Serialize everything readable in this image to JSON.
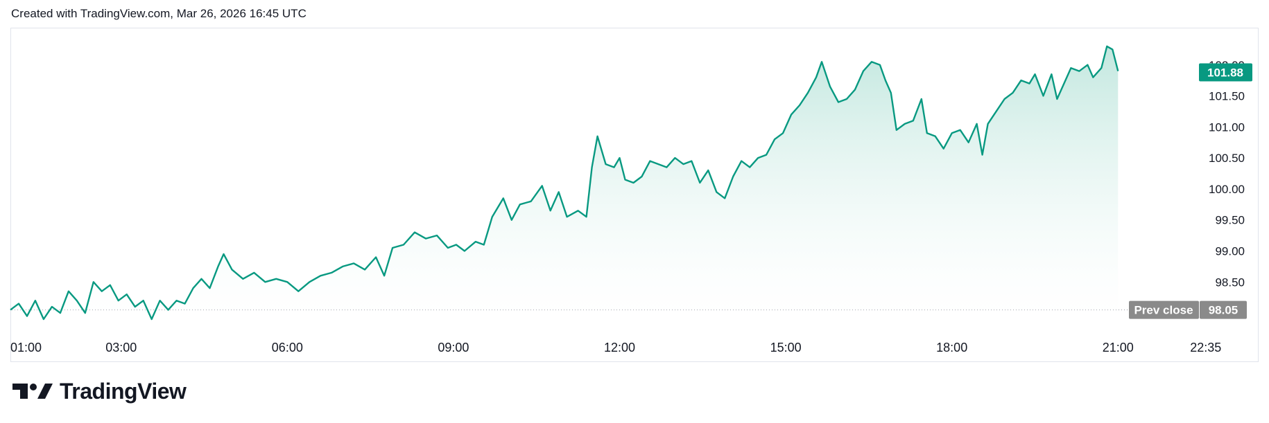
{
  "header": {
    "created_text": "Created with TradingView.com, Mar 26, 2026 16:45 UTC"
  },
  "brand": {
    "logo_text": "TradingView"
  },
  "colors": {
    "line": "#089981",
    "fill_top": "#b7e3d9",
    "label_bg": "#089981",
    "prev_close_bg": "#8a8a8a",
    "axis_text": "#131722"
  },
  "chart_data": {
    "type": "area",
    "title": "",
    "xlabel": "",
    "ylabel": "",
    "x_ticks": [
      "01:00",
      "03:00",
      "06:00",
      "09:00",
      "12:00",
      "15:00",
      "18:00",
      "21:00",
      "22:35"
    ],
    "y_ticks": [
      "102.00",
      "101.50",
      "101.00",
      "100.50",
      "100.00",
      "99.50",
      "99.00",
      "98.50"
    ],
    "ylim": [
      97.8,
      102.6
    ],
    "xlim_hours": [
      1,
      23.1
    ],
    "last_price": {
      "value": 101.88,
      "label": "101.88"
    },
    "prev_close": {
      "value": 98.05,
      "label": "Prev close",
      "value_label": "98.05"
    },
    "series": [
      {
        "values": [
          [
            1.0,
            98.05
          ],
          [
            1.15,
            98.15
          ],
          [
            1.3,
            97.95
          ],
          [
            1.45,
            98.2
          ],
          [
            1.6,
            97.9
          ],
          [
            1.75,
            98.1
          ],
          [
            1.9,
            98.0
          ],
          [
            2.05,
            98.35
          ],
          [
            2.2,
            98.2
          ],
          [
            2.35,
            98.0
          ],
          [
            2.5,
            98.5
          ],
          [
            2.65,
            98.35
          ],
          [
            2.8,
            98.45
          ],
          [
            2.95,
            98.2
          ],
          [
            3.1,
            98.3
          ],
          [
            3.25,
            98.1
          ],
          [
            3.4,
            98.2
          ],
          [
            3.55,
            97.9
          ],
          [
            3.7,
            98.2
          ],
          [
            3.85,
            98.05
          ],
          [
            4.0,
            98.2
          ],
          [
            4.15,
            98.15
          ],
          [
            4.3,
            98.4
          ],
          [
            4.45,
            98.55
          ],
          [
            4.6,
            98.4
          ],
          [
            4.75,
            98.75
          ],
          [
            4.85,
            98.95
          ],
          [
            5.0,
            98.7
          ],
          [
            5.2,
            98.55
          ],
          [
            5.4,
            98.65
          ],
          [
            5.6,
            98.5
          ],
          [
            5.8,
            98.55
          ],
          [
            6.0,
            98.5
          ],
          [
            6.2,
            98.35
          ],
          [
            6.4,
            98.5
          ],
          [
            6.6,
            98.6
          ],
          [
            6.8,
            98.65
          ],
          [
            7.0,
            98.75
          ],
          [
            7.2,
            98.8
          ],
          [
            7.4,
            98.7
          ],
          [
            7.6,
            98.9
          ],
          [
            7.75,
            98.6
          ],
          [
            7.9,
            99.05
          ],
          [
            8.1,
            99.1
          ],
          [
            8.3,
            99.3
          ],
          [
            8.5,
            99.2
          ],
          [
            8.7,
            99.25
          ],
          [
            8.9,
            99.05
          ],
          [
            9.05,
            99.1
          ],
          [
            9.2,
            99.0
          ],
          [
            9.4,
            99.15
          ],
          [
            9.55,
            99.1
          ],
          [
            9.7,
            99.55
          ],
          [
            9.9,
            99.85
          ],
          [
            10.05,
            99.5
          ],
          [
            10.2,
            99.75
          ],
          [
            10.4,
            99.8
          ],
          [
            10.6,
            100.05
          ],
          [
            10.75,
            99.65
          ],
          [
            10.9,
            99.95
          ],
          [
            11.05,
            99.55
          ],
          [
            11.25,
            99.65
          ],
          [
            11.4,
            99.55
          ],
          [
            11.5,
            100.35
          ],
          [
            11.6,
            100.85
          ],
          [
            11.75,
            100.4
          ],
          [
            11.9,
            100.35
          ],
          [
            12.0,
            100.5
          ],
          [
            12.1,
            100.15
          ],
          [
            12.25,
            100.1
          ],
          [
            12.4,
            100.2
          ],
          [
            12.55,
            100.45
          ],
          [
            12.7,
            100.4
          ],
          [
            12.85,
            100.35
          ],
          [
            13.0,
            100.5
          ],
          [
            13.15,
            100.4
          ],
          [
            13.3,
            100.45
          ],
          [
            13.45,
            100.1
          ],
          [
            13.6,
            100.3
          ],
          [
            13.75,
            99.95
          ],
          [
            13.9,
            99.85
          ],
          [
            14.05,
            100.2
          ],
          [
            14.2,
            100.45
          ],
          [
            14.35,
            100.35
          ],
          [
            14.5,
            100.5
          ],
          [
            14.65,
            100.55
          ],
          [
            14.8,
            100.8
          ],
          [
            14.95,
            100.9
          ],
          [
            15.1,
            101.2
          ],
          [
            15.25,
            101.35
          ],
          [
            15.4,
            101.55
          ],
          [
            15.55,
            101.8
          ],
          [
            15.65,
            102.05
          ],
          [
            15.8,
            101.65
          ],
          [
            15.95,
            101.4
          ],
          [
            16.1,
            101.45
          ],
          [
            16.25,
            101.6
          ],
          [
            16.4,
            101.9
          ],
          [
            16.55,
            102.05
          ],
          [
            16.7,
            102.0
          ],
          [
            16.8,
            101.75
          ],
          [
            16.9,
            101.55
          ],
          [
            17.0,
            100.95
          ],
          [
            17.15,
            101.05
          ],
          [
            17.3,
            101.1
          ],
          [
            17.45,
            101.45
          ],
          [
            17.55,
            100.9
          ],
          [
            17.7,
            100.85
          ],
          [
            17.85,
            100.65
          ],
          [
            18.0,
            100.9
          ],
          [
            18.15,
            100.95
          ],
          [
            18.3,
            100.75
          ],
          [
            18.45,
            101.05
          ],
          [
            18.55,
            100.55
          ],
          [
            18.65,
            101.05
          ],
          [
            18.8,
            101.25
          ],
          [
            18.95,
            101.45
          ],
          [
            19.1,
            101.55
          ],
          [
            19.25,
            101.75
          ],
          [
            19.4,
            101.7
          ],
          [
            19.5,
            101.85
          ],
          [
            19.65,
            101.5
          ],
          [
            19.8,
            101.85
          ],
          [
            19.9,
            101.45
          ],
          [
            20.0,
            101.65
          ],
          [
            20.15,
            101.95
          ],
          [
            20.3,
            101.9
          ],
          [
            20.45,
            102.0
          ],
          [
            20.55,
            101.8
          ],
          [
            20.7,
            101.95
          ],
          [
            20.8,
            102.3
          ],
          [
            20.9,
            102.25
          ],
          [
            21.0,
            101.9
          ]
        ]
      }
    ]
  }
}
